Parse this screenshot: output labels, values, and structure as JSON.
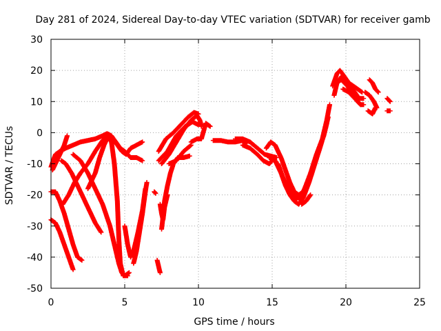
{
  "chart_data": {
    "type": "scatter",
    "title": "Day 281 of 2024, Sidereal Day-to-day VTEC variation (SDTVAR) for receiver gamb",
    "xlabel": "GPS time / hours",
    "ylabel": "SDTVAR / TECUs",
    "xlim": [
      0,
      25
    ],
    "ylim": [
      -50,
      30
    ],
    "xticks": [
      0,
      5,
      10,
      15,
      20,
      25
    ],
    "yticks": [
      -50,
      -40,
      -30,
      -20,
      -10,
      0,
      10,
      20,
      30
    ],
    "grid": true,
    "marker": "+",
    "series_color": "#ff0000",
    "tracks": [
      {
        "name": "t1",
        "points": [
          [
            0.0,
            -11
          ],
          [
            0.3,
            -7
          ],
          [
            0.6,
            -6
          ],
          [
            1.0,
            -5
          ],
          [
            1.5,
            -4
          ],
          [
            2.0,
            -3
          ],
          [
            2.5,
            -2.5
          ],
          [
            3.0,
            -2
          ],
          [
            3.5,
            -1
          ],
          [
            3.8,
            -0.3
          ],
          [
            4.1,
            -1
          ],
          [
            4.4,
            -3
          ],
          [
            4.7,
            -5
          ],
          [
            5.0,
            -6
          ],
          [
            5.4,
            -8
          ],
          [
            5.8,
            -8
          ],
          [
            6.2,
            -9
          ]
        ]
      },
      {
        "name": "t2",
        "points": [
          [
            0.0,
            -28
          ],
          [
            0.3,
            -29
          ],
          [
            0.6,
            -32
          ],
          [
            0.9,
            -36
          ],
          [
            1.2,
            -40
          ],
          [
            1.5,
            -44
          ]
        ]
      },
      {
        "name": "t3",
        "points": [
          [
            0.0,
            -19
          ],
          [
            0.3,
            -19
          ],
          [
            0.6,
            -22
          ],
          [
            0.9,
            -26
          ],
          [
            1.2,
            -31
          ],
          [
            1.5,
            -36
          ],
          [
            1.8,
            -40
          ],
          [
            2.1,
            -41
          ]
        ]
      },
      {
        "name": "t4",
        "points": [
          [
            0.1,
            -12
          ],
          [
            0.3,
            -10
          ],
          [
            0.5,
            -8
          ],
          [
            0.7,
            -6
          ],
          [
            0.9,
            -4
          ],
          [
            1.1,
            -1
          ]
        ]
      },
      {
        "name": "t5",
        "points": [
          [
            0.8,
            -23
          ],
          [
            1.2,
            -20
          ],
          [
            1.6,
            -16
          ],
          [
            2.0,
            -13
          ],
          [
            2.5,
            -10
          ],
          [
            3.0,
            -6
          ],
          [
            3.5,
            -2.5
          ],
          [
            3.9,
            -0.5
          ],
          [
            4.2,
            -2
          ],
          [
            4.5,
            -4
          ],
          [
            4.8,
            -6
          ],
          [
            5.1,
            -7
          ],
          [
            5.4,
            -5
          ],
          [
            5.8,
            -4
          ],
          [
            6.2,
            -3
          ]
        ]
      },
      {
        "name": "t6",
        "points": [
          [
            0.7,
            -9
          ],
          [
            1.0,
            -10
          ],
          [
            1.4,
            -13
          ],
          [
            1.8,
            -17
          ],
          [
            2.2,
            -21
          ],
          [
            2.6,
            -25
          ],
          [
            3.0,
            -29
          ],
          [
            3.4,
            -32
          ]
        ]
      },
      {
        "name": "t7",
        "points": [
          [
            1.5,
            -7
          ],
          [
            2.0,
            -9
          ],
          [
            2.5,
            -13
          ],
          [
            3.0,
            -18
          ],
          [
            3.5,
            -23
          ],
          [
            4.0,
            -30
          ],
          [
            4.3,
            -36
          ],
          [
            4.6,
            -42
          ],
          [
            4.8,
            -45
          ],
          [
            5.0,
            -46
          ],
          [
            5.3,
            -45
          ]
        ]
      },
      {
        "name": "t8",
        "points": [
          [
            2.5,
            -18
          ],
          [
            3.0,
            -13
          ],
          [
            3.3,
            -8
          ],
          [
            3.6,
            -4
          ],
          [
            3.9,
            -1
          ],
          [
            4.1,
            -3
          ],
          [
            4.3,
            -10
          ],
          [
            4.5,
            -22
          ],
          [
            4.6,
            -34
          ],
          [
            4.7,
            -42
          ],
          [
            4.9,
            -46
          ],
          [
            5.2,
            -46
          ]
        ]
      },
      {
        "name": "t9",
        "points": [
          [
            5.0,
            -30
          ],
          [
            5.2,
            -36
          ],
          [
            5.4,
            -40
          ],
          [
            5.6,
            -38
          ],
          [
            5.9,
            -32
          ],
          [
            6.2,
            -25
          ],
          [
            6.4,
            -18
          ]
        ]
      },
      {
        "name": "t10",
        "points": [
          [
            5.6,
            -42
          ],
          [
            5.8,
            -38
          ],
          [
            6.0,
            -32
          ],
          [
            6.2,
            -26
          ],
          [
            6.4,
            -19
          ],
          [
            6.5,
            -16
          ]
        ]
      },
      {
        "name": "t11",
        "points": [
          [
            7.0,
            -19
          ],
          [
            7.1,
            -19.5
          ]
        ]
      },
      {
        "name": "t12",
        "points": [
          [
            7.2,
            -41
          ],
          [
            7.3,
            -43
          ],
          [
            7.4,
            -45
          ]
        ]
      },
      {
        "name": "t13",
        "points": [
          [
            7.4,
            -23
          ],
          [
            7.5,
            -26
          ],
          [
            7.6,
            -28
          ],
          [
            7.7,
            -24
          ],
          [
            7.9,
            -20
          ]
        ]
      },
      {
        "name": "t14",
        "points": [
          [
            7.5,
            -31
          ],
          [
            7.6,
            -27
          ],
          [
            7.7,
            -22
          ],
          [
            7.9,
            -17
          ],
          [
            8.1,
            -13
          ],
          [
            8.3,
            -10
          ],
          [
            8.6,
            -8
          ],
          [
            9.0,
            -8
          ],
          [
            9.4,
            -7.5
          ]
        ]
      },
      {
        "name": "t15",
        "points": [
          [
            7.3,
            -6
          ],
          [
            7.8,
            -2
          ],
          [
            8.3,
            0
          ],
          [
            8.8,
            2.5
          ],
          [
            9.3,
            5
          ],
          [
            9.7,
            6.5
          ],
          [
            10.0,
            6
          ]
        ]
      },
      {
        "name": "t16",
        "points": [
          [
            7.5,
            -10
          ],
          [
            8.0,
            -7
          ],
          [
            8.5,
            -3
          ],
          [
            9.0,
            1
          ],
          [
            9.5,
            4
          ],
          [
            9.9,
            5.5
          ],
          [
            10.1,
            4
          ],
          [
            10.2,
            2
          ]
        ]
      },
      {
        "name": "t17",
        "points": [
          [
            7.3,
            -9
          ],
          [
            7.9,
            -6
          ],
          [
            8.5,
            -1
          ],
          [
            9.1,
            2
          ],
          [
            9.6,
            3.5
          ],
          [
            10.0,
            2.5
          ]
        ]
      },
      {
        "name": "t18",
        "points": [
          [
            9.5,
            -3
          ],
          [
            9.9,
            -2
          ],
          [
            10.2,
            -2
          ],
          [
            10.5,
            3
          ],
          [
            10.8,
            2
          ]
        ]
      },
      {
        "name": "t19",
        "points": [
          [
            8.0,
            -10
          ],
          [
            8.5,
            -9
          ],
          [
            9.0,
            -6
          ],
          [
            9.5,
            -4
          ]
        ]
      },
      {
        "name": "t20",
        "points": [
          [
            11.0,
            -2.5
          ],
          [
            11.5,
            -2.5
          ],
          [
            12.0,
            -3
          ],
          [
            12.5,
            -3
          ],
          [
            13.0,
            -2.5
          ],
          [
            13.3,
            -3
          ]
        ]
      },
      {
        "name": "t21",
        "points": [
          [
            12.5,
            -2
          ],
          [
            13.0,
            -2
          ],
          [
            13.5,
            -3
          ],
          [
            14.0,
            -5
          ],
          [
            14.5,
            -7
          ],
          [
            14.9,
            -7.5
          ],
          [
            15.3,
            -8
          ]
        ]
      },
      {
        "name": "t22",
        "points": [
          [
            13.0,
            -4
          ],
          [
            13.5,
            -5
          ],
          [
            14.0,
            -7
          ],
          [
            14.4,
            -9
          ],
          [
            14.8,
            -10
          ],
          [
            15.0,
            -9
          ]
        ]
      },
      {
        "name": "t23",
        "points": [
          [
            14.6,
            -5
          ],
          [
            14.9,
            -3
          ],
          [
            15.2,
            -4
          ],
          [
            15.6,
            -8
          ],
          [
            15.9,
            -12
          ],
          [
            16.2,
            -16
          ],
          [
            16.5,
            -19
          ],
          [
            16.8,
            -20
          ],
          [
            17.1,
            -19
          ],
          [
            17.4,
            -16
          ],
          [
            17.8,
            -11
          ],
          [
            18.2,
            -5
          ],
          [
            18.5,
            -1
          ],
          [
            18.7,
            3
          ]
        ]
      },
      {
        "name": "t24",
        "points": [
          [
            14.8,
            -8
          ],
          [
            15.2,
            -9
          ],
          [
            15.6,
            -13
          ],
          [
            15.9,
            -17
          ],
          [
            16.2,
            -20
          ],
          [
            16.5,
            -22
          ],
          [
            16.8,
            -23
          ],
          [
            17.1,
            -21
          ],
          [
            17.5,
            -16
          ],
          [
            17.9,
            -10
          ],
          [
            18.3,
            -4
          ],
          [
            18.6,
            1
          ],
          [
            18.8,
            5
          ]
        ]
      },
      {
        "name": "t25",
        "points": [
          [
            15.4,
            -10
          ],
          [
            15.7,
            -14
          ],
          [
            16.0,
            -17
          ],
          [
            16.3,
            -19
          ],
          [
            16.6,
            -21
          ],
          [
            16.9,
            -21
          ],
          [
            17.2,
            -18
          ],
          [
            17.6,
            -13
          ],
          [
            18.0,
            -7
          ],
          [
            18.4,
            -2
          ],
          [
            18.7,
            4
          ],
          [
            18.9,
            9
          ]
        ]
      },
      {
        "name": "t26",
        "points": [
          [
            17.0,
            -23
          ],
          [
            17.3,
            -22
          ],
          [
            17.6,
            -20
          ]
        ]
      },
      {
        "name": "t27",
        "points": [
          [
            19.2,
            12
          ],
          [
            19.4,
            16
          ],
          [
            19.7,
            18
          ],
          [
            20.0,
            17
          ],
          [
            20.3,
            15
          ],
          [
            20.6,
            13
          ],
          [
            20.9,
            11
          ],
          [
            21.2,
            11
          ]
        ]
      },
      {
        "name": "t28",
        "points": [
          [
            19.1,
            15
          ],
          [
            19.4,
            19
          ],
          [
            19.6,
            20
          ],
          [
            19.9,
            18
          ],
          [
            20.2,
            16
          ],
          [
            20.5,
            15
          ],
          [
            20.8,
            14
          ],
          [
            21.1,
            13
          ]
        ]
      },
      {
        "name": "t29",
        "points": [
          [
            19.3,
            16
          ],
          [
            19.7,
            17
          ],
          [
            20.1,
            15
          ],
          [
            20.5,
            12
          ],
          [
            20.8,
            10
          ],
          [
            21.0,
            9
          ]
        ]
      },
      {
        "name": "t30",
        "points": [
          [
            19.8,
            14
          ],
          [
            20.2,
            13
          ],
          [
            20.6,
            11
          ],
          [
            21.0,
            9
          ],
          [
            21.2,
            9
          ]
        ]
      },
      {
        "name": "t31",
        "points": [
          [
            21.3,
            13
          ],
          [
            21.6,
            12
          ],
          [
            21.9,
            10
          ],
          [
            22.1,
            8
          ]
        ]
      },
      {
        "name": "t32",
        "points": [
          [
            21.6,
            17
          ],
          [
            21.8,
            16
          ],
          [
            22.0,
            14
          ],
          [
            22.2,
            13
          ]
        ]
      },
      {
        "name": "t33",
        "points": [
          [
            21.5,
            7
          ],
          [
            21.8,
            6
          ],
          [
            22.0,
            8
          ]
        ]
      },
      {
        "name": "t34",
        "points": [
          [
            22.8,
            11
          ],
          [
            23.0,
            10
          ]
        ]
      },
      {
        "name": "t35",
        "points": [
          [
            22.8,
            7
          ],
          [
            23.0,
            7
          ]
        ]
      }
    ]
  }
}
